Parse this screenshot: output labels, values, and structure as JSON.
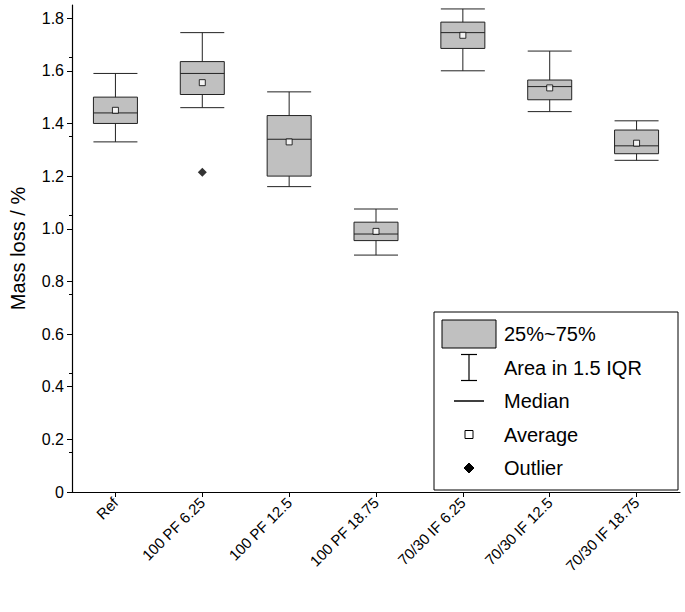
{
  "chart_data": {
    "type": "boxplot",
    "y_label": "Mass loss / %",
    "categories": [
      "Ref",
      "100 PF 6.25",
      "100 PF 12.5",
      "100 PF 18.75",
      "70/30 IF 6.25",
      "70/30 IF 12.5",
      "70/30 IF 18.75"
    ],
    "boxes": {
      "name": "25%~75%",
      "whisker_name": "Area in 1.5 IQR",
      "median_name": "Median",
      "color": "#c0c0c0",
      "values": [
        {
          "low": 1.33,
          "q1": 1.4,
          "median": 1.44,
          "q3": 1.5,
          "high": 1.59
        },
        {
          "low": 1.46,
          "q1": 1.51,
          "median": 1.59,
          "q3": 1.635,
          "high": 1.745
        },
        {
          "low": 1.16,
          "q1": 1.2,
          "median": 1.34,
          "q3": 1.43,
          "high": 1.52
        },
        {
          "low": 0.9,
          "q1": 0.955,
          "median": 0.98,
          "q3": 1.025,
          "high": 1.075
        },
        {
          "low": 1.6,
          "q1": 1.685,
          "median": 1.745,
          "q3": 1.785,
          "high": 1.835
        },
        {
          "low": 1.445,
          "q1": 1.49,
          "median": 1.54,
          "q3": 1.565,
          "high": 1.675
        },
        {
          "low": 1.26,
          "q1": 1.285,
          "median": 1.315,
          "q3": 1.375,
          "high": 1.41
        }
      ]
    },
    "averages": {
      "name": "Average",
      "marker": "square",
      "color": "#ffffff",
      "values": [
        1.45,
        1.555,
        1.33,
        0.99,
        1.735,
        1.535,
        1.325
      ]
    },
    "outliers": {
      "name": "Outlier",
      "marker": "diamond",
      "color": "#000000",
      "points": [
        {
          "category": "100 PF 6.25",
          "value": 1.215
        }
      ]
    },
    "ylim": [
      0,
      1.85
    ],
    "yticks": [
      0,
      0.2,
      0.4,
      0.6,
      0.8,
      {
        "value": 1,
        "label": "1.0"
      },
      1.2,
      1.4,
      1.6,
      1.8
    ],
    "grid": false,
    "legend": "lower right"
  }
}
